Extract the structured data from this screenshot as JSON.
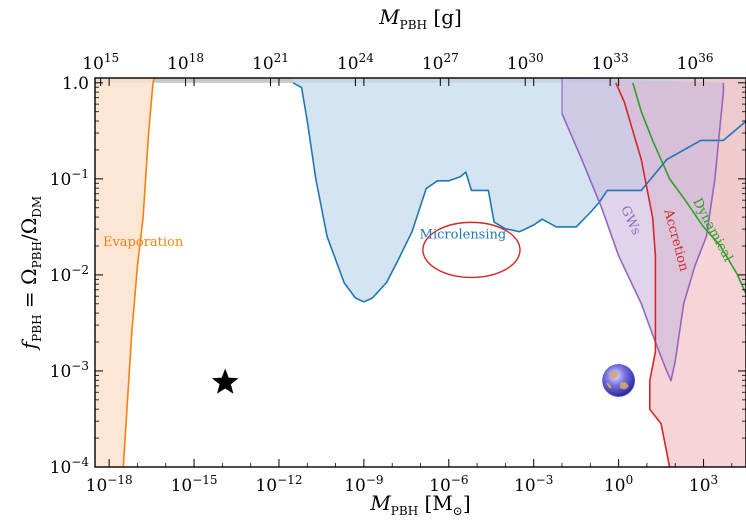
{
  "chart_data": {
    "type": "area",
    "xscale": "log",
    "yscale": "log",
    "xlim": [
      -18.5,
      4.5
    ],
    "ylim": [
      -4,
      0.05
    ],
    "xlabel": {
      "main": "M",
      "sub": "PBH",
      "unit": "[M",
      "unit_sub": "⊙",
      "unit_end": "]"
    },
    "ylabel": {
      "main": "f",
      "sub": "PBH",
      "eq": " = Ω",
      "sub2": "PBH",
      "slash": "/Ω",
      "sub3": "DM"
    },
    "top_axis": {
      "label": {
        "main": "M",
        "sub": "PBH",
        "unit": "[g]"
      },
      "ticks": [
        {
          "base": "10",
          "exp": "15"
        },
        {
          "base": "10",
          "exp": "18"
        },
        {
          "base": "10",
          "exp": "21"
        },
        {
          "base": "10",
          "exp": "24"
        },
        {
          "base": "10",
          "exp": "27"
        },
        {
          "base": "10",
          "exp": "30"
        },
        {
          "base": "10",
          "exp": "33"
        },
        {
          "base": "10",
          "exp": "36"
        }
      ],
      "tick_log10_grams": [
        15,
        18,
        21,
        24,
        27,
        30,
        33,
        36
      ],
      "log10_grams_per_solar_mass": 33.3
    },
    "xticks": [
      {
        "base": "10",
        "exp": "−18"
      },
      {
        "base": "10",
        "exp": "−15"
      },
      {
        "base": "10",
        "exp": "−12"
      },
      {
        "base": "10",
        "exp": "−9"
      },
      {
        "base": "10",
        "exp": "−6"
      },
      {
        "base": "10",
        "exp": "−3"
      },
      {
        "base": "10",
        "exp": "0"
      },
      {
        "base": "10",
        "exp": "3"
      }
    ],
    "xtick_log10": [
      -18,
      -15,
      -12,
      -9,
      -6,
      -3,
      0,
      3
    ],
    "yticks": [
      {
        "base": "10",
        "exp": "−4",
        "plain": ""
      },
      {
        "base": "10",
        "exp": "−3",
        "plain": ""
      },
      {
        "base": "10",
        "exp": "−2",
        "plain": ""
      },
      {
        "base": "10",
        "exp": "−1",
        "plain": ""
      },
      {
        "base": "",
        "exp": "",
        "plain": "1.0"
      }
    ],
    "ytick_log10": [
      -4,
      -3,
      -2,
      -1,
      0
    ],
    "constraints": [
      {
        "name": "Evaporation",
        "color": "#ff7f0e",
        "fill": "#fde2cc",
        "label_pos": [
          -16.8,
          -1.7
        ],
        "label_rotation": 0,
        "points": [
          [
            -17.5,
            -4.0
          ],
          [
            -17.2,
            -2.6
          ],
          [
            -17.0,
            -1.9
          ],
          [
            -16.8,
            -1.4
          ],
          [
            -16.6,
            -0.5
          ],
          [
            -16.45,
            0.0
          ],
          [
            -16.4,
            0.05
          ]
        ],
        "bound_side": "left"
      },
      {
        "name": "Microlensing",
        "color": "#1f77b4",
        "fill": "#c6dcec",
        "label_pos": [
          -5.5,
          -1.62
        ],
        "label_rotation": 0,
        "points": [
          [
            -11.5,
            0.0
          ],
          [
            -11.2,
            -0.05
          ],
          [
            -11.0,
            -0.4
          ],
          [
            -10.7,
            -1.0
          ],
          [
            -10.3,
            -1.6
          ],
          [
            -9.7,
            -2.08
          ],
          [
            -9.3,
            -2.24
          ],
          [
            -9.0,
            -2.28
          ],
          [
            -8.7,
            -2.24
          ],
          [
            -8.2,
            -2.08
          ],
          [
            -7.8,
            -1.85
          ],
          [
            -7.3,
            -1.55
          ],
          [
            -6.8,
            -1.1
          ],
          [
            -6.4,
            -1.02
          ],
          [
            -6.0,
            -1.02
          ],
          [
            -5.6,
            -0.98
          ],
          [
            -5.4,
            -0.93
          ],
          [
            -5.2,
            -1.12
          ],
          [
            -4.6,
            -1.12
          ],
          [
            -4.4,
            -1.45
          ],
          [
            -4.0,
            -1.52
          ],
          [
            -3.5,
            -1.55
          ],
          [
            -3.0,
            -1.48
          ],
          [
            -2.7,
            -1.42
          ],
          [
            -2.2,
            -1.5
          ],
          [
            -1.5,
            -1.5
          ],
          [
            -1.0,
            -1.35
          ],
          [
            -0.7,
            -1.25
          ],
          [
            -0.4,
            -1.12
          ],
          [
            0.8,
            -1.12
          ],
          [
            1.7,
            -0.8
          ],
          [
            2.9,
            -0.6
          ],
          [
            3.7,
            -0.6
          ],
          [
            4.5,
            -0.4
          ]
        ],
        "bound_side": "top"
      },
      {
        "name": "GWs",
        "color": "#9467bd",
        "fill": "#c9b7e0",
        "label_pos": [
          0.3,
          -1.45
        ],
        "label_rotation": 65,
        "points": [
          [
            -2.0,
            -0.32
          ],
          [
            -1.3,
            -0.8
          ],
          [
            -0.6,
            -1.3
          ],
          [
            0.0,
            -1.8
          ],
          [
            0.8,
            -2.3
          ],
          [
            1.3,
            -2.7
          ],
          [
            1.7,
            -3.0
          ],
          [
            1.85,
            -3.1
          ],
          [
            2.0,
            -2.9
          ],
          [
            2.3,
            -2.3
          ],
          [
            2.7,
            -1.9
          ],
          [
            3.1,
            -1.6
          ],
          [
            3.4,
            -1.0
          ],
          [
            3.6,
            -0.4
          ],
          [
            3.7,
            -0.1
          ],
          [
            3.7,
            0.0
          ]
        ],
        "bound_side": "above"
      },
      {
        "name": "Accretion",
        "color": "#d62728",
        "fill": "#f4c6cb",
        "label_pos": [
          1.9,
          -1.65
        ],
        "label_rotation": 75,
        "points": [
          [
            1.8,
            -4.0
          ],
          [
            1.5,
            -3.55
          ],
          [
            1.1,
            -3.4
          ],
          [
            1.1,
            -3.1
          ],
          [
            1.3,
            -2.8
          ],
          [
            1.3,
            -1.8
          ],
          [
            1.2,
            -1.4
          ],
          [
            0.8,
            -0.8
          ],
          [
            0.2,
            -0.2
          ],
          [
            -0.1,
            0.0
          ]
        ],
        "bound_side": "right"
      },
      {
        "name": "Dynamical",
        "color": "#2ca02c",
        "fill": "#d6d0c8",
        "label_pos": [
          3.2,
          -1.55
        ],
        "label_rotation": 62,
        "points": [
          [
            0.5,
            0.0
          ],
          [
            0.8,
            -0.3
          ],
          [
            1.2,
            -0.6
          ],
          [
            1.8,
            -1.0
          ],
          [
            2.3,
            -1.2
          ],
          [
            3.0,
            -1.5
          ],
          [
            3.6,
            -1.7
          ],
          [
            4.2,
            -2.0
          ],
          [
            4.5,
            -2.2
          ]
        ],
        "bound_side": "right"
      }
    ],
    "microlensing_ellipse": {
      "cx": -5.2,
      "cy": -1.74,
      "rx": 2.6,
      "ry": 0.37,
      "color": "#d62728"
    },
    "top_band": {
      "ymin": 0.0,
      "color": "#c8c8c8"
    },
    "markers": [
      {
        "name": "star",
        "x": -13.9,
        "y": -3.12
      },
      {
        "name": "earth",
        "x": 0.0,
        "y": -3.1
      }
    ]
  },
  "colors": {
    "evaporation": "#ff7f0e",
    "microlensing": "#1f77b4",
    "gws": "#9467bd",
    "accretion": "#d62728",
    "dynamical": "#2ca02c"
  }
}
